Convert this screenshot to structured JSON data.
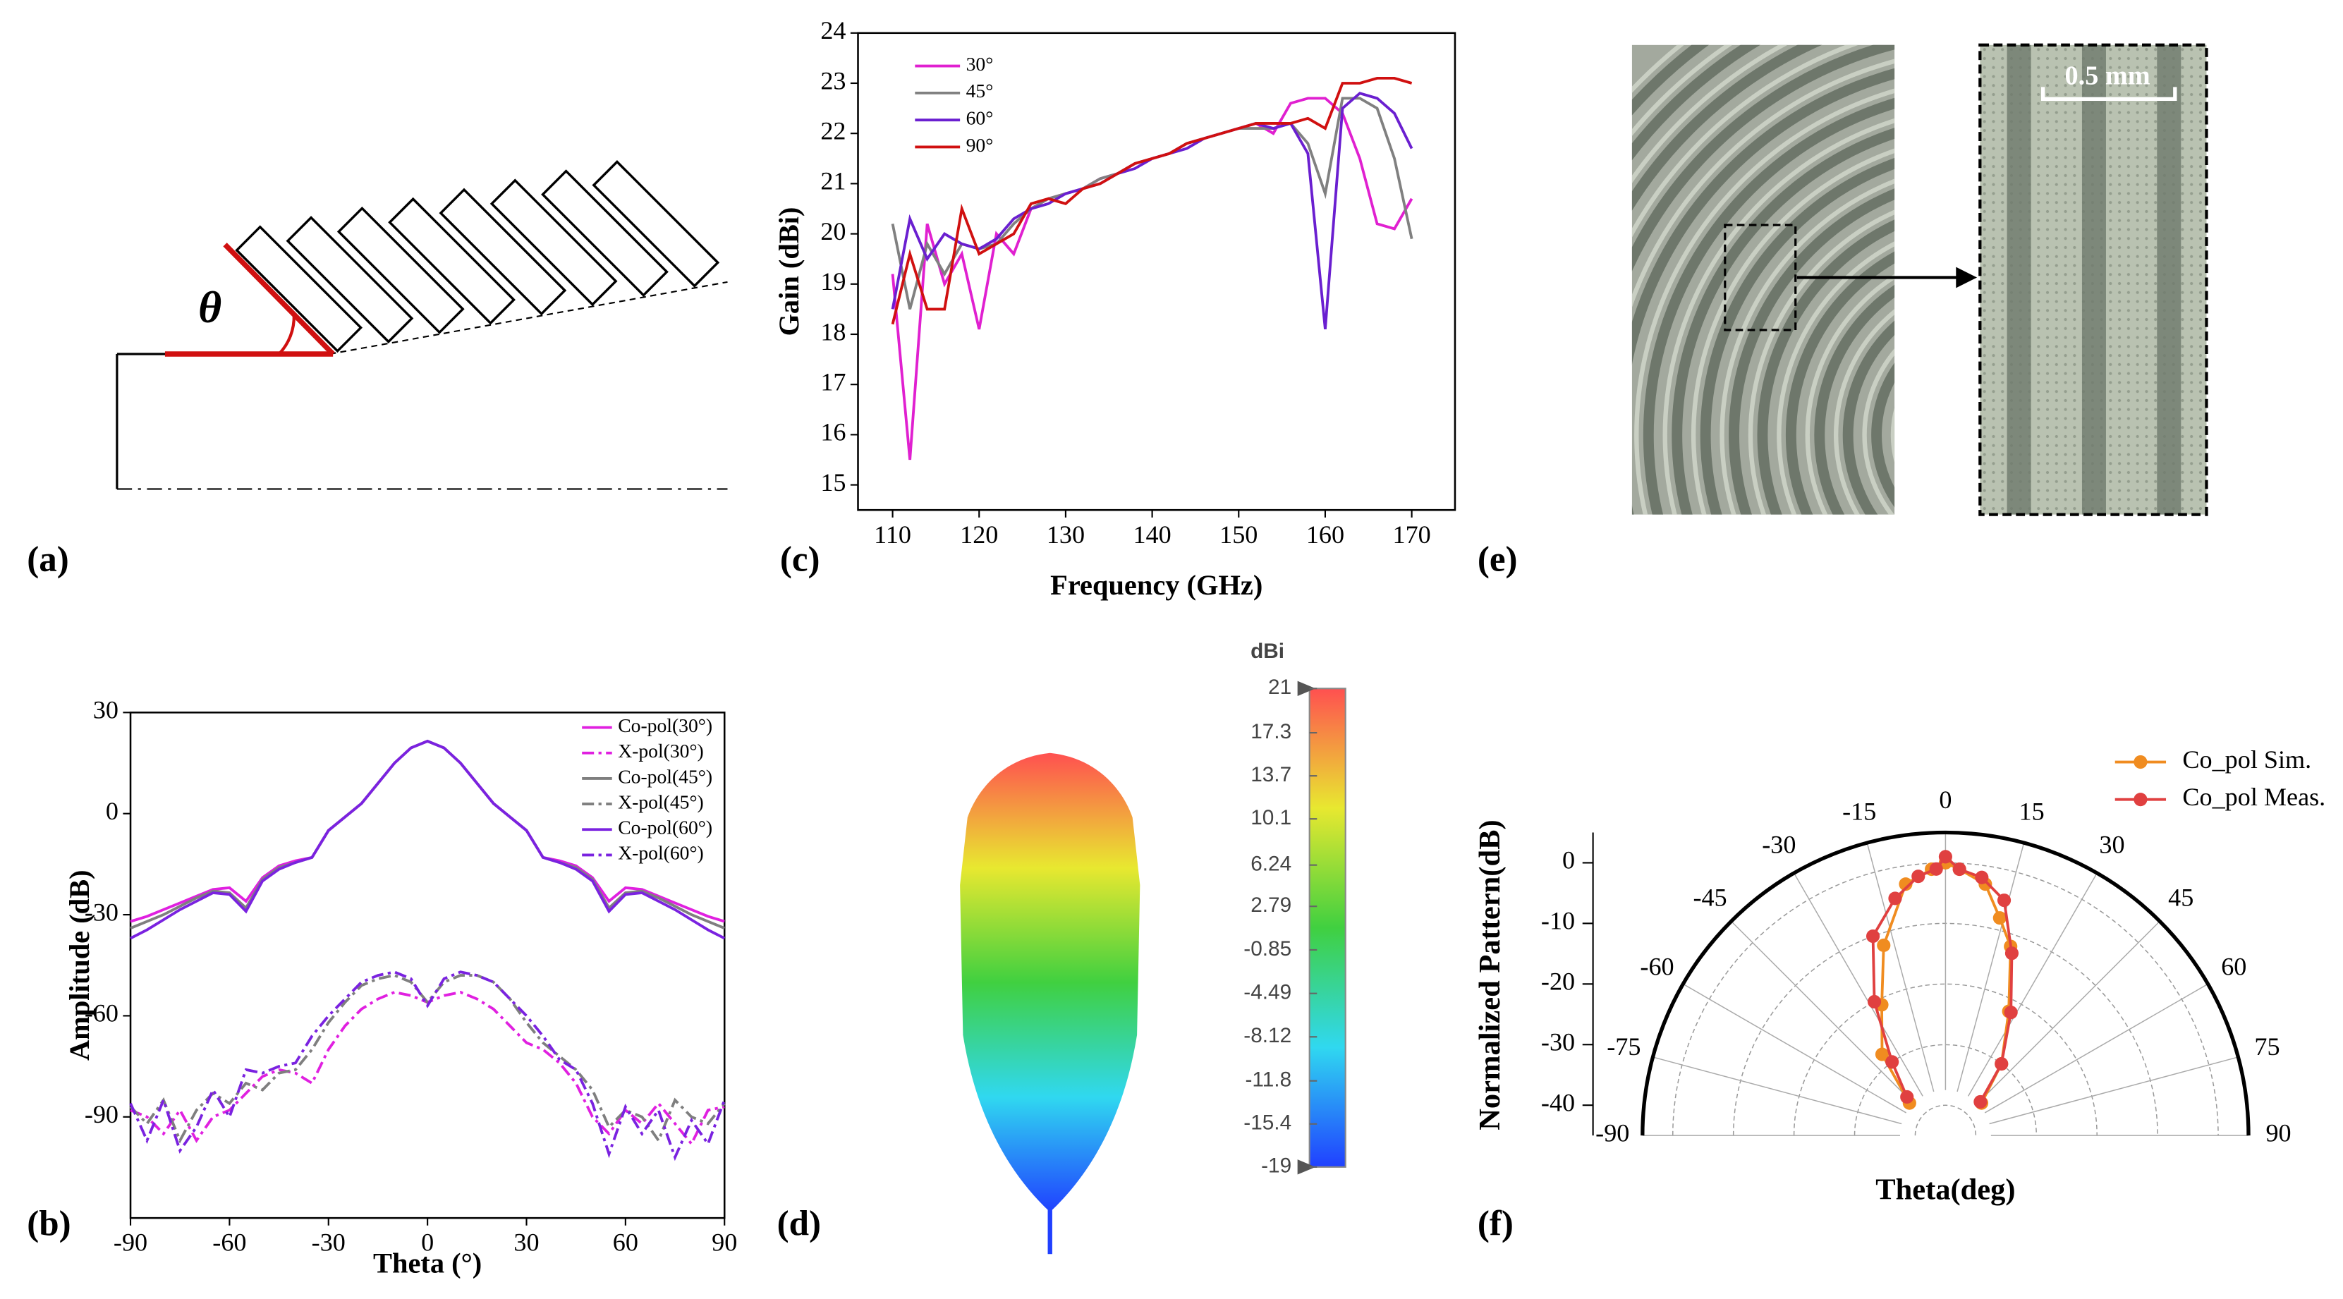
{
  "panel_labels": [
    "(a)",
    "(b)",
    "(c)",
    "(d)",
    "(e)",
    "(f)"
  ],
  "diagram_a": {
    "angle_label": "θ"
  },
  "photo_e": {
    "scale_label": "0.5 mm"
  },
  "chart_data": [
    {
      "type": "line",
      "xlabel": "Theta (°)",
      "ylabel": "Amplitude (dB)",
      "x": [
        -90,
        -85,
        -80,
        -75,
        -70,
        -65,
        -60,
        -55,
        -50,
        -45,
        -40,
        -35,
        -30,
        -25,
        -20,
        -15,
        -10,
        -5,
        0,
        5,
        10,
        15,
        20,
        25,
        30,
        35,
        40,
        45,
        50,
        55,
        60,
        65,
        70,
        75,
        80,
        85,
        90
      ],
      "xlim": [
        -90,
        90
      ],
      "xticks": [
        -90,
        -60,
        -30,
        0,
        30,
        60,
        90
      ],
      "ylim": [
        -120,
        30
      ],
      "yticks": [
        30,
        0,
        -30,
        -60,
        -90
      ],
      "legend": "upper right",
      "series": [
        {
          "name": "Co-pol(30°)",
          "color": "#e020e0",
          "style": "solid",
          "values": [
            -32,
            -30.5,
            -28.5,
            -26.5,
            -24.5,
            -22.5,
            -22,
            -26,
            -19,
            -15.5,
            -14,
            -13,
            -5,
            -1,
            3,
            9,
            15,
            19.5,
            21.5,
            19.5,
            15,
            9,
            3,
            -1,
            -5,
            -13,
            -14,
            -15.5,
            -19,
            -26,
            -22,
            -22.5,
            -24.5,
            -26.5,
            -28.5,
            -30.5,
            -32
          ]
        },
        {
          "name": "X-pol(30°)",
          "color": "#e020e0",
          "style": "dashdot",
          "values": [
            -88,
            -90,
            -95,
            -88,
            -97,
            -90,
            -88,
            -83,
            -78,
            -76,
            -77,
            -80,
            -70,
            -63,
            -58,
            -55,
            -53,
            -54,
            -56,
            -54,
            -53,
            -55,
            -58,
            -63,
            -68,
            -70,
            -74,
            -80,
            -90,
            -95,
            -88,
            -92,
            -86,
            -92,
            -98,
            -88,
            -87
          ]
        },
        {
          "name": "Co-pol(45°)",
          "color": "#7f7f7f",
          "style": "solid",
          "values": [
            -34,
            -32,
            -30,
            -27.5,
            -25,
            -23,
            -23.5,
            -28,
            -19.5,
            -16,
            -14.5,
            -13,
            -5,
            -1,
            3,
            9,
            15,
            19.5,
            21.5,
            19.5,
            15,
            9,
            3,
            -1,
            -5,
            -13,
            -14.5,
            -16,
            -19.5,
            -28,
            -23.5,
            -23,
            -25,
            -27.5,
            -30,
            -32,
            -34
          ]
        },
        {
          "name": "X-pol(45°)",
          "color": "#7f7f7f",
          "style": "dashdot",
          "values": [
            -87,
            -92,
            -85,
            -97,
            -88,
            -83,
            -86,
            -80,
            -82,
            -77,
            -76,
            -70,
            -62,
            -56,
            -51,
            -49,
            -48,
            -50,
            -56,
            -50,
            -48,
            -48,
            -50,
            -55,
            -62,
            -68,
            -72,
            -76,
            -82,
            -93,
            -88,
            -90,
            -97,
            -85,
            -90,
            -92,
            -86
          ]
        },
        {
          "name": "Co-pol(60°)",
          "color": "#7a22e0",
          "style": "solid",
          "values": [
            -37,
            -34.5,
            -31.5,
            -28.5,
            -26,
            -23.5,
            -24,
            -29,
            -20,
            -16.5,
            -14.5,
            -13,
            -5,
            -1,
            3,
            9,
            15,
            19.5,
            21.5,
            19.5,
            15,
            9,
            3,
            -1,
            -5,
            -13,
            -14.5,
            -16.5,
            -20,
            -29,
            -24,
            -23.5,
            -26,
            -28.5,
            -31.5,
            -34.5,
            -37
          ]
        },
        {
          "name": "X-pol(60°)",
          "color": "#7a22e0",
          "style": "dashdot",
          "values": [
            -86,
            -97,
            -85,
            -100,
            -93,
            -82,
            -90,
            -76,
            -77,
            -75,
            -74,
            -66,
            -60,
            -55,
            -50,
            -48,
            -47,
            -49,
            -57,
            -49,
            -47,
            -48,
            -50,
            -55,
            -60,
            -66,
            -73,
            -76,
            -86,
            -101,
            -87,
            -95,
            -88,
            -102,
            -91,
            -98,
            -85
          ]
        }
      ]
    },
    {
      "type": "line",
      "xlabel": "Frequency (GHz)",
      "ylabel": "Gain (dBi)",
      "x": [
        110,
        112,
        114,
        116,
        118,
        120,
        122,
        124,
        126,
        128,
        130,
        132,
        134,
        136,
        138,
        140,
        142,
        144,
        146,
        148,
        150,
        152,
        154,
        156,
        158,
        160,
        162,
        164,
        166,
        168,
        170
      ],
      "xlim": [
        106,
        175
      ],
      "xticks": [
        110,
        120,
        130,
        140,
        150,
        160,
        170
      ],
      "ylim": [
        14.5,
        24
      ],
      "yticks": [
        15,
        16,
        17,
        18,
        19,
        20,
        21,
        22,
        23,
        24
      ],
      "legend": "upper left",
      "series": [
        {
          "name": "30°",
          "color": "#e020d0",
          "style": "solid",
          "values": [
            19.2,
            15.5,
            20.2,
            19.0,
            19.6,
            18.1,
            20.0,
            19.6,
            20.5,
            20.7,
            20.8,
            20.9,
            21.1,
            21.2,
            21.4,
            21.5,
            21.6,
            21.8,
            21.9,
            22.0,
            22.1,
            22.2,
            22.0,
            22.6,
            22.7,
            22.7,
            22.4,
            21.5,
            20.2,
            20.1,
            20.7
          ]
        },
        {
          "name": "45°",
          "color": "#808080",
          "style": "solid",
          "values": [
            20.2,
            18.5,
            19.8,
            19.2,
            19.8,
            19.7,
            19.8,
            20.2,
            20.5,
            20.7,
            20.8,
            20.9,
            21.1,
            21.2,
            21.4,
            21.5,
            21.6,
            21.8,
            21.9,
            22.0,
            22.1,
            22.1,
            22.1,
            22.2,
            21.8,
            20.8,
            22.7,
            22.7,
            22.5,
            21.5,
            19.9
          ]
        },
        {
          "name": "60°",
          "color": "#6a1fd0",
          "style": "solid",
          "values": [
            18.5,
            20.3,
            19.5,
            20.0,
            19.8,
            19.7,
            19.9,
            20.3,
            20.5,
            20.6,
            20.8,
            20.9,
            21.0,
            21.2,
            21.3,
            21.5,
            21.6,
            21.7,
            21.9,
            22.0,
            22.1,
            22.2,
            22.1,
            22.2,
            21.6,
            18.1,
            22.5,
            22.8,
            22.7,
            22.4,
            21.7
          ]
        },
        {
          "name": "90°",
          "color": "#d01010",
          "style": "solid",
          "values": [
            18.2,
            19.6,
            18.5,
            18.5,
            20.5,
            19.6,
            19.8,
            20.0,
            20.6,
            20.7,
            20.6,
            20.9,
            21.0,
            21.2,
            21.4,
            21.5,
            21.6,
            21.8,
            21.9,
            22.0,
            22.1,
            22.2,
            22.2,
            22.2,
            22.3,
            22.1,
            23.0,
            23.0,
            23.1,
            23.1,
            23.0
          ]
        }
      ]
    },
    {
      "type": "colorbar",
      "title": "dBi",
      "clim": [
        -19,
        21
      ],
      "ticks": [
        21,
        17.3,
        13.7,
        10.1,
        6.24,
        2.79,
        -0.85,
        -4.49,
        -8.12,
        -11.8,
        -15.4,
        -19
      ],
      "colors": [
        "#2040ff",
        "#30d8f0",
        "#40d040",
        "#e8e830",
        "#ff5050"
      ]
    },
    {
      "type": "polar",
      "xlabel": "Theta(deg)",
      "ylabel": "Normalized Pattern(dB)",
      "rlim": [
        -45,
        5
      ],
      "rticks": [
        0,
        -10,
        -20,
        -30,
        -40
      ],
      "thetaticks": [
        -90,
        -75,
        -60,
        -45,
        -30,
        -15,
        0,
        15,
        30,
        45,
        60,
        75,
        90
      ],
      "legend": "upper right",
      "series": [
        {
          "name": "Co_pol Sim.",
          "color": "#f08c20",
          "x": [
            -48,
            -38,
            -26,
            -18,
            -9,
            -3,
            0,
            3,
            9,
            14,
            19,
            27,
            38,
            48
          ],
          "values": [
            -37,
            -28,
            -21,
            -12,
            -3,
            -1,
            0,
            -1,
            -3,
            -8,
            -12,
            -22,
            -30,
            -37
          ]
        },
        {
          "name": "Co_pol Meas.",
          "color": "#e04040",
          "x": [
            -45,
            -36,
            -28,
            -20,
            -12,
            -6,
            -2,
            0,
            3,
            8,
            14,
            20,
            28,
            38,
            46
          ],
          "values": [
            -36,
            -30,
            -20,
            -10,
            -5,
            -2,
            -1,
            1,
            -1,
            -2,
            -5,
            -13,
            -22,
            -30,
            -37
          ]
        }
      ]
    }
  ]
}
